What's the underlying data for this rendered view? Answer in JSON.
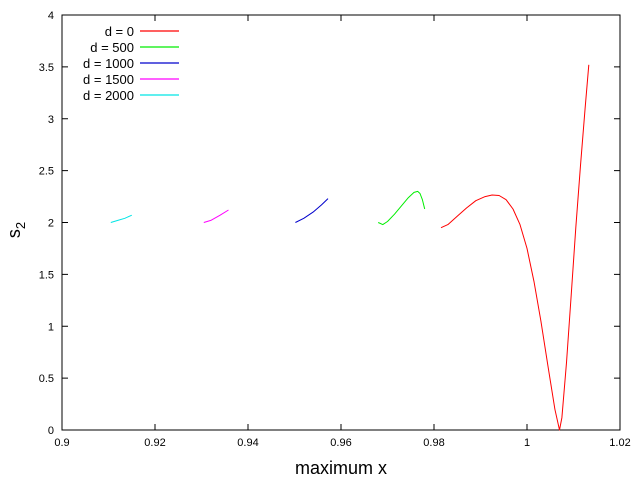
{
  "chart_data": {
    "type": "line",
    "title": "",
    "xlabel": "maximum x",
    "ylabel_main": "s",
    "ylabel_sub": "2",
    "xlim": [
      0.9,
      1.02
    ],
    "ylim": [
      0,
      4
    ],
    "xticks": [
      {
        "value": 0.9,
        "label": "0.9"
      },
      {
        "value": 0.92,
        "label": "0.92"
      },
      {
        "value": 0.94,
        "label": "0.94"
      },
      {
        "value": 0.96,
        "label": "0.96"
      },
      {
        "value": 0.98,
        "label": "0.98"
      },
      {
        "value": 1.0,
        "label": "1"
      },
      {
        "value": 1.02,
        "label": "1.02"
      }
    ],
    "yticks": [
      {
        "value": 0,
        "label": "0"
      },
      {
        "value": 0.5,
        "label": "0.5"
      },
      {
        "value": 1,
        "label": "1"
      },
      {
        "value": 1.5,
        "label": "1.5"
      },
      {
        "value": 2,
        "label": "2"
      },
      {
        "value": 2.5,
        "label": "2.5"
      },
      {
        "value": 3,
        "label": "3"
      },
      {
        "value": 3.5,
        "label": "3.5"
      },
      {
        "value": 4,
        "label": "4"
      }
    ],
    "grid": false,
    "legend_position": "top-left",
    "series": [
      {
        "name": "d = 0",
        "color": "#ff0000",
        "x": [
          0.9815,
          0.983,
          0.985,
          0.987,
          0.989,
          0.991,
          0.9925,
          0.994,
          0.9955,
          0.997,
          0.9985,
          1.0,
          1.0015,
          1.003,
          1.0045,
          1.006,
          1.007,
          1.0075,
          1.0085,
          1.0095,
          1.0105,
          1.0115,
          1.0125,
          1.0133
        ],
        "y": [
          1.95,
          1.98,
          2.06,
          2.14,
          2.21,
          2.25,
          2.265,
          2.26,
          2.22,
          2.13,
          1.98,
          1.75,
          1.43,
          1.05,
          0.62,
          0.2,
          0.0,
          0.12,
          0.65,
          1.3,
          1.95,
          2.55,
          3.1,
          3.52
        ]
      },
      {
        "name": "d = 500",
        "color": "#00ee00",
        "x": [
          0.968,
          0.969,
          0.97,
          0.9715,
          0.973,
          0.9745,
          0.9757,
          0.9765,
          0.977,
          0.9775,
          0.978
        ],
        "y": [
          2.0,
          1.98,
          2.01,
          2.08,
          2.16,
          2.24,
          2.29,
          2.3,
          2.28,
          2.22,
          2.13
        ]
      },
      {
        "name": "d = 1000",
        "color": "#0000cc",
        "x": [
          0.9502,
          0.952,
          0.954,
          0.9558,
          0.9572
        ],
        "y": [
          2.0,
          2.04,
          2.1,
          2.17,
          2.23
        ]
      },
      {
        "name": "d = 1500",
        "color": "#ff00ff",
        "x": [
          0.9305,
          0.932,
          0.934,
          0.9358
        ],
        "y": [
          2.0,
          2.02,
          2.07,
          2.12
        ]
      },
      {
        "name": "d = 2000",
        "color": "#00e5e5",
        "x": [
          0.9105,
          0.912,
          0.9135,
          0.915
        ],
        "y": [
          2.0,
          2.02,
          2.04,
          2.07
        ]
      }
    ]
  }
}
